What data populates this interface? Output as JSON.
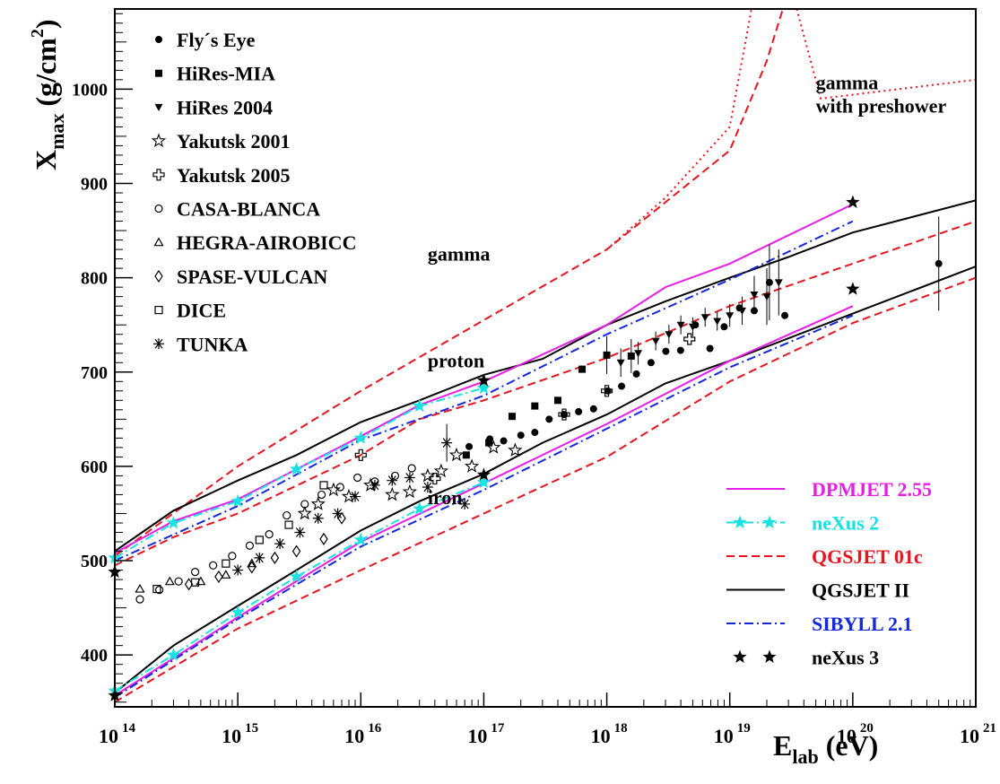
{
  "chart_data": {
    "type": "line",
    "xscale": "log",
    "xlim": [
      100000000000000.0,
      1e+21
    ],
    "ylim": [
      345,
      1085
    ],
    "x_axis": {
      "label_main": "E",
      "label_sub": "lab",
      "label_unit": "(eV)",
      "ticks": [
        {
          "value": 100000000000000.0,
          "base": "10",
          "exp": "14"
        },
        {
          "value": 1000000000000000.0,
          "base": "10",
          "exp": "15"
        },
        {
          "value": 1e+16,
          "base": "10",
          "exp": "16"
        },
        {
          "value": 1e+17,
          "base": "10",
          "exp": "17"
        },
        {
          "value": 1e+18,
          "base": "10",
          "exp": "18"
        },
        {
          "value": 1e+19,
          "base": "10",
          "exp": "19"
        },
        {
          "value": 1e+20,
          "base": "10",
          "exp": "20"
        },
        {
          "value": 1e+21,
          "base": "10",
          "exp": "21"
        }
      ]
    },
    "y_axis": {
      "label_main": "X",
      "label_sub": "max",
      "label_unit_pre": "(g/cm",
      "label_unit_sup": "2",
      "label_unit_post": ")",
      "ticks": [
        400,
        500,
        600,
        700,
        800,
        900,
        1000
      ]
    },
    "annotations": [
      {
        "text": "gamma",
        "x": 3.5e+16,
        "y": 818
      },
      {
        "text": "proton",
        "x": 3.5e+16,
        "y": 705
      },
      {
        "text": "iron",
        "x": 3.5e+16,
        "y": 560
      },
      {
        "text": "gamma",
        "x": 5e+19,
        "y": 1000
      },
      {
        "text": "with preshower",
        "x": 5e+19,
        "y": 975
      }
    ],
    "model_legend": [
      {
        "name": "DPMJET 2.55",
        "color": "#e81ee8",
        "style": "solid",
        "marker": ""
      },
      {
        "name": "neXus 2",
        "color": "#16e2e2",
        "style": "dashdot",
        "marker": "star"
      },
      {
        "name": "QGSJET 01c",
        "color": "#e8141e",
        "style": "dashed",
        "marker": ""
      },
      {
        "name": "QGSJET II",
        "color": "#000000",
        "style": "solid",
        "marker": ""
      },
      {
        "name": "SIBYLL 2.1",
        "color": "#1428e0",
        "style": "dashdot",
        "marker": ""
      },
      {
        "name": "neXus 3",
        "color": "#000000",
        "style": "none",
        "marker": "star"
      }
    ],
    "data_legend": [
      {
        "name": "Fly´s Eye",
        "marker": "circle-filled"
      },
      {
        "name": "HiRes-MIA",
        "marker": "square-filled"
      },
      {
        "name": "HiRes 2004",
        "marker": "triangle-down-filled"
      },
      {
        "name": "Yakutsk 2001",
        "marker": "star-open"
      },
      {
        "name": "Yakutsk 2005",
        "marker": "cross-open"
      },
      {
        "name": "CASA-BLANCA",
        "marker": "circle-open"
      },
      {
        "name": "HEGRA-AIROBICC",
        "marker": "triangle-up-open"
      },
      {
        "name": "SPASE-VULCAN",
        "marker": "diamond-open"
      },
      {
        "name": "DICE",
        "marker": "square-open"
      },
      {
        "name": "TUNKA",
        "marker": "asterisk"
      }
    ],
    "model_curves": [
      {
        "model": "QGSJET 01c",
        "particle": "gamma",
        "color": "#e8141e",
        "style": "dashed",
        "x": [
          100000000000000.0,
          1000000000000000.0,
          1e+16,
          1e+17,
          1e+18,
          1e+19,
          2e+19,
          2.7e+19
        ],
        "y": [
          505,
          600,
          680,
          755,
          830,
          935,
          1030,
          1085
        ]
      },
      {
        "model": "QGSJET 01c",
        "particle": "gamma with preshower",
        "color": "#e8141e",
        "style": "dotted",
        "x": [
          1e+18,
          3e+18,
          1e+19,
          1.5e+19
        ],
        "y": [
          830,
          885,
          960,
          1085
        ]
      },
      {
        "model": "QGSJET 01c",
        "particle": "gamma with preshower",
        "color": "#e8141e",
        "style": "dotted",
        "x": [
          3.5e+19,
          5.5e+19,
          1e+21
        ],
        "y": [
          1085,
          990,
          1010
        ]
      },
      {
        "model": "QGSJET II",
        "particle": "proton",
        "color": "#000000",
        "style": "solid",
        "x": [
          100000000000000.0,
          300000000000000.0,
          1000000000000000.0,
          3000000000000000.0,
          1e+16,
          3e+16,
          1e+17,
          3e+17,
          1e+18,
          3e+18,
          1e+19,
          3e+19,
          1e+20,
          1e+21
        ],
        "y": [
          510,
          553,
          585,
          612,
          647,
          670,
          697,
          714,
          750,
          775,
          800,
          822,
          848,
          882
        ]
      },
      {
        "model": "QGSJET 01c",
        "particle": "proton",
        "color": "#e8141e",
        "style": "dashed",
        "x": [
          100000000000000.0,
          300000000000000.0,
          1000000000000000.0,
          1e+16,
          3e+16,
          1e+17,
          1e+18,
          1e+19,
          1e+20,
          1e+21
        ],
        "y": [
          495,
          525,
          550,
          612,
          650,
          670,
          715,
          770,
          815,
          860
        ]
      },
      {
        "model": "DPMJET 2.55",
        "particle": "proton",
        "color": "#e81ee8",
        "style": "solid",
        "x": [
          100000000000000.0,
          300000000000000.0,
          1000000000000000.0,
          1e+16,
          3e+16,
          1e+17,
          1e+18,
          3e+18,
          1e+19,
          1e+20
        ],
        "y": [
          508,
          542,
          565,
          632,
          665,
          690,
          750,
          790,
          815,
          878
        ]
      },
      {
        "model": "neXus 2",
        "particle": "proton",
        "color": "#16e2e2",
        "style": "dashdot",
        "x": [
          100000000000000.0,
          300000000000000.0,
          1000000000000000.0,
          3000000000000000.0,
          1e+16,
          3e+16,
          1e+17
        ],
        "y": [
          503,
          540,
          563,
          597,
          630,
          664,
          683
        ]
      },
      {
        "model": "SIBYLL 2.1",
        "particle": "proton",
        "color": "#1428e0",
        "style": "dashdot",
        "x": [
          100000000000000.0,
          1000000000000000.0,
          1e+16,
          1e+17,
          1e+18,
          1e+19,
          1e+20
        ],
        "y": [
          500,
          558,
          628,
          675,
          740,
          798,
          860
        ]
      },
      {
        "model": "QGSJET II",
        "particle": "iron",
        "color": "#000000",
        "style": "solid",
        "x": [
          100000000000000.0,
          300000000000000.0,
          1000000000000000.0,
          3000000000000000.0,
          1e+16,
          3e+16,
          1e+17,
          3e+17,
          1e+18,
          3e+18,
          1e+19,
          1e+20,
          1e+21
        ],
        "y": [
          360,
          410,
          452,
          490,
          532,
          563,
          592,
          625,
          655,
          688,
          712,
          762,
          812
        ]
      },
      {
        "model": "QGSJET 01c",
        "particle": "iron",
        "color": "#e8141e",
        "style": "dashed",
        "x": [
          100000000000000.0,
          1000000000000000.0,
          1e+16,
          1e+17,
          1e+18,
          1e+19,
          1e+20,
          1e+21
        ],
        "y": [
          350,
          428,
          490,
          550,
          610,
          690,
          752,
          800
        ]
      },
      {
        "model": "DPMJET 2.55",
        "particle": "iron",
        "color": "#e81ee8",
        "style": "solid",
        "x": [
          100000000000000.0,
          1000000000000000.0,
          1e+16,
          1e+17,
          1e+18,
          1e+19,
          1e+20
        ],
        "y": [
          357,
          440,
          520,
          582,
          645,
          712,
          770
        ]
      },
      {
        "model": "neXus 2",
        "particle": "iron",
        "color": "#16e2e2",
        "style": "dashdot",
        "x": [
          100000000000000.0,
          300000000000000.0,
          1000000000000000.0,
          3000000000000000.0,
          1e+16,
          3e+16,
          1e+17
        ],
        "y": [
          362,
          400,
          445,
          483,
          522,
          555,
          583
        ]
      },
      {
        "model": "SIBYLL 2.1",
        "particle": "iron",
        "color": "#1428e0",
        "style": "dashdot",
        "x": [
          100000000000000.0,
          1000000000000000.0,
          1e+16,
          1e+17,
          1e+18,
          1e+19,
          1e+20
        ],
        "y": [
          355,
          438,
          515,
          575,
          640,
          705,
          760
        ]
      }
    ],
    "model_points": [
      {
        "model": "neXus 2",
        "particle": "proton",
        "x": [
          100000000000000.0,
          300000000000000.0,
          1000000000000000.0,
          3000000000000000.0,
          1e+16,
          3e+16,
          1e+17
        ],
        "y": [
          503,
          540,
          563,
          597,
          630,
          664,
          683
        ]
      },
      {
        "model": "neXus 2",
        "particle": "iron",
        "x": [
          100000000000000.0,
          300000000000000.0,
          1000000000000000.0,
          3000000000000000.0,
          1e+16,
          3e+16,
          1e+17
        ],
        "y": [
          362,
          400,
          445,
          483,
          522,
          555,
          583
        ]
      },
      {
        "model": "neXus 3",
        "particle": "proton",
        "x": [
          100000000000000.0,
          1e+17,
          1e+20
        ],
        "y": [
          488,
          691,
          880
        ]
      },
      {
        "model": "neXus 3",
        "particle": "iron",
        "x": [
          100000000000000.0,
          1e+17,
          1e+20
        ],
        "y": [
          357,
          591,
          788
        ]
      }
    ],
    "measurements": [
      {
        "experiment": "Fly´s Eye",
        "x": [
          7.6e+16,
          1.12e+17,
          1.45e+17,
          2e+17,
          2.6e+17,
          3.4e+17,
          4.5e+17,
          5.9e+17,
          7.8e+17,
          1.02e+18,
          1.32e+18,
          1.74e+18,
          2.29e+18,
          3.02e+18,
          3.98e+18,
          5.25e+18,
          6.9e+18,
          9e+18,
          1.2e+19,
          1.58e+19,
          2.1e+19,
          2.8e+19,
          5e+20
        ],
        "y": [
          621,
          629,
          627,
          633,
          636,
          650,
          655,
          658,
          661,
          680,
          685,
          698,
          710,
          722,
          723,
          750,
          725,
          748,
          768,
          765,
          795,
          760,
          815
        ],
        "yerr": [
          0,
          0,
          0,
          0,
          0,
          0,
          0,
          0,
          0,
          0,
          0,
          0,
          0,
          0,
          0,
          0,
          0,
          0,
          0,
          0,
          40,
          0,
          50
        ]
      },
      {
        "experiment": "HiRes-MIA",
        "x": [
          7.2e+16,
          1.1e+17,
          1.7e+17,
          2.6e+17,
          4e+17,
          6.3e+17,
          1e+18,
          1.58e+18
        ],
        "y": [
          612,
          625,
          653,
          664,
          670,
          703,
          718,
          717
        ],
        "yerr": [
          0,
          0,
          0,
          0,
          0,
          0,
          20,
          18
        ]
      },
      {
        "experiment": "HiRes 2004",
        "x": [
          1.3e+18,
          1.8e+18,
          2.5e+18,
          3.2e+18,
          4e+18,
          5e+18,
          6.3e+18,
          7.9e+18,
          1e+19,
          1.26e+19,
          1.58e+19,
          2e+19,
          2.5e+19
        ],
        "y": [
          710,
          720,
          733,
          740,
          750,
          748,
          758,
          754,
          760,
          765,
          782,
          780,
          795
        ],
        "yerr": [
          15,
          12,
          10,
          10,
          10,
          10,
          10,
          10,
          12,
          15,
          20,
          30,
          35
        ]
      },
      {
        "experiment": "Yakutsk 2001",
        "x": [
          3500000000000000.0,
          4500000000000000.0,
          6000000000000000.0,
          8000000000000000.0,
          1.2e+16,
          1.8e+16,
          2.5e+16,
          3.5e+16,
          4.5e+16,
          6e+16,
          8e+16,
          1.2e+17,
          1.8e+17
        ],
        "y": [
          550,
          560,
          575,
          568,
          580,
          570,
          573,
          590,
          595,
          612,
          600,
          620,
          617
        ],
        "yerr": [
          0,
          0,
          0,
          0,
          0,
          0,
          0,
          0,
          0,
          0,
          0,
          0,
          0
        ]
      },
      {
        "experiment": "Yakutsk 2005",
        "x": [
          1e+16,
          4e+16,
          4.5e+17,
          1e+18,
          4.7e+18
        ],
        "y": [
          612,
          587,
          655,
          680,
          735
        ],
        "yerr": [
          0,
          0,
          0,
          0,
          0
        ]
      },
      {
        "experiment": "CASA-BLANCA",
        "x": [
          160000000000000.0,
          230000000000000.0,
          330000000000000.0,
          450000000000000.0,
          630000000000000.0,
          900000000000000.0,
          1250000000000000.0,
          1800000000000000.0,
          2500000000000000.0,
          3500000000000000.0,
          4800000000000000.0,
          6800000000000000.0,
          9400000000000000.0,
          1.3e+16,
          1.9e+16,
          2.6e+16
        ],
        "y": [
          459,
          469,
          478,
          488,
          495,
          505,
          516,
          528,
          548,
          560,
          570,
          578,
          588,
          584,
          590,
          598
        ],
        "yerr": [
          0,
          0,
          0,
          0,
          0,
          0,
          0,
          0,
          0,
          0,
          0,
          0,
          0,
          0,
          0,
          0
        ]
      },
      {
        "experiment": "HEGRA-AIROBICC",
        "x": [
          160000000000000.0,
          280000000000000.0,
          500000000000000.0,
          800000000000000.0,
          1300000000000000.0
        ],
        "y": [
          470,
          478,
          478,
          485,
          497
        ],
        "yerr": [
          0,
          0,
          0,
          0,
          0
        ]
      },
      {
        "experiment": "SPASE-VULCAN",
        "x": [
          400000000000000.0,
          700000000000000.0,
          1300000000000000.0,
          2000000000000000.0,
          3000000000000000.0,
          5000000000000000.0,
          7000000000000000.0
        ],
        "y": [
          475,
          483,
          493,
          503,
          510,
          523,
          545
        ],
        "yerr": [
          0,
          0,
          0,
          0,
          0,
          0,
          0
        ]
      },
      {
        "experiment": "DICE",
        "x": [
          220000000000000.0,
          450000000000000.0,
          800000000000000.0,
          1500000000000000.0,
          2600000000000000.0,
          5000000000000000.0
        ],
        "y": [
          470,
          477,
          497,
          522,
          538,
          580
        ],
        "yerr": [
          0,
          0,
          0,
          0,
          0,
          0
        ]
      },
      {
        "experiment": "TUNKA",
        "x": [
          1000000000000000.0,
          1500000000000000.0,
          2200000000000000.0,
          3200000000000000.0,
          4500000000000000.0,
          6500000000000000.0,
          9000000000000000.0,
          1.3e+16,
          1.8e+16,
          2.5e+16,
          3.5e+16,
          5e+16,
          7e+16
        ],
        "y": [
          490,
          503,
          518,
          530,
          545,
          550,
          568,
          580,
          585,
          588,
          578,
          625,
          560
        ],
        "yerr": [
          0,
          0,
          0,
          0,
          0,
          0,
          0,
          0,
          0,
          0,
          0,
          20,
          0
        ]
      }
    ]
  }
}
